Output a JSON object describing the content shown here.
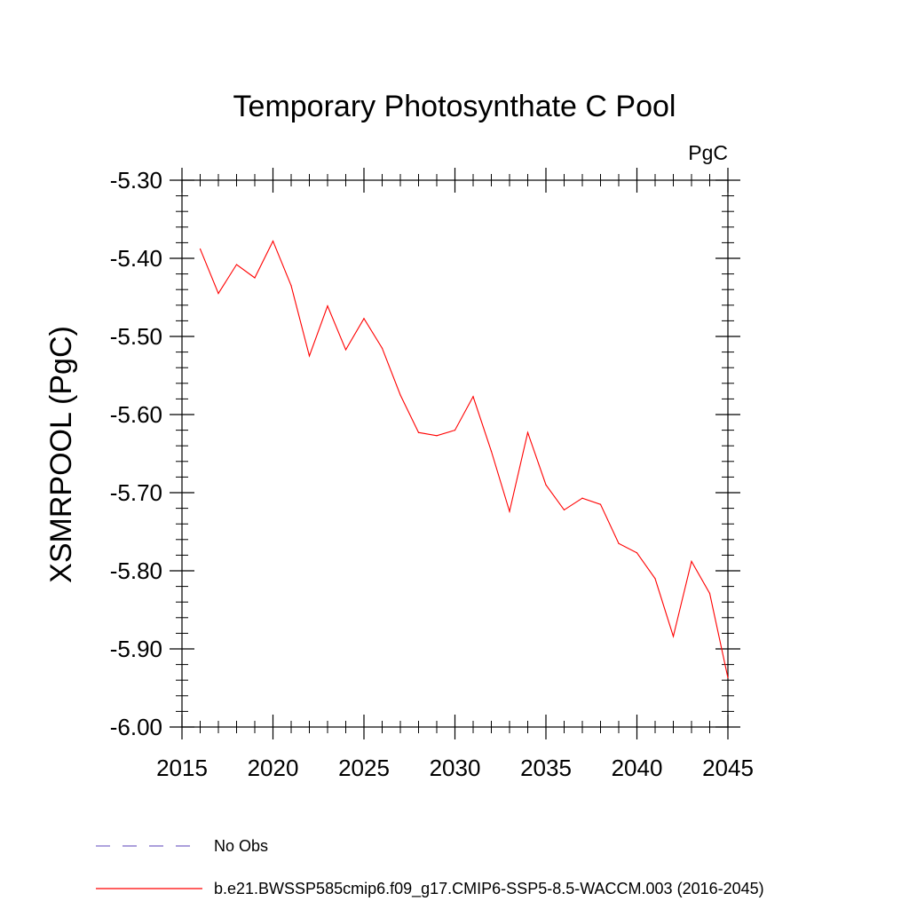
{
  "chart_data": {
    "type": "line",
    "title": "Temporary Photosynthate C Pool",
    "units": "PgC",
    "xlabel": "",
    "ylabel": "XSMRPOOL  (PgC)",
    "xlim": [
      2015,
      2045
    ],
    "ylim": [
      -6.0,
      -5.3
    ],
    "x_ticks": [
      2015,
      2020,
      2025,
      2030,
      2035,
      2040,
      2045
    ],
    "y_ticks": [
      -5.3,
      -5.4,
      -5.5,
      -5.6,
      -5.7,
      -5.8,
      -5.9,
      -6.0
    ],
    "y_tick_labels": [
      "-5.30",
      "-5.40",
      "-5.50",
      "-5.60",
      "-5.70",
      "-5.80",
      "-5.90",
      "-6.00"
    ],
    "grid": false,
    "legend_position": "bottom",
    "series": [
      {
        "name": "b.e21.BWSSP585cmip6.f09_g17.CMIP6-SSP5-8.5-WACCM.003 (2016-2045)",
        "color": "#ff0000",
        "style": "solid",
        "x": [
          2016,
          2017,
          2018,
          2019,
          2020,
          2021,
          2022,
          2023,
          2024,
          2025,
          2026,
          2027,
          2028,
          2029,
          2030,
          2031,
          2032,
          2033,
          2034,
          2035,
          2036,
          2037,
          2038,
          2039,
          2040,
          2041,
          2042,
          2043,
          2044,
          2045
        ],
        "values": [
          -5.388,
          -5.445,
          -5.408,
          -5.425,
          -5.378,
          -5.435,
          -5.525,
          -5.461,
          -5.517,
          -5.477,
          -5.515,
          -5.575,
          -5.623,
          -5.627,
          -5.62,
          -5.577,
          -5.647,
          -5.724,
          -5.623,
          -5.69,
          -5.722,
          -5.707,
          -5.715,
          -5.765,
          -5.777,
          -5.81,
          -5.884,
          -5.788,
          -5.829,
          -5.937
        ]
      }
    ],
    "legend": [
      {
        "label": "No Obs",
        "color": "#7b68c8",
        "style": "dashed"
      },
      {
        "label": "b.e21.BWSSP585cmip6.f09_g17.CMIP6-SSP5-8.5-WACCM.003 (2016-2045)",
        "color": "#ff0000",
        "style": "solid"
      }
    ]
  }
}
